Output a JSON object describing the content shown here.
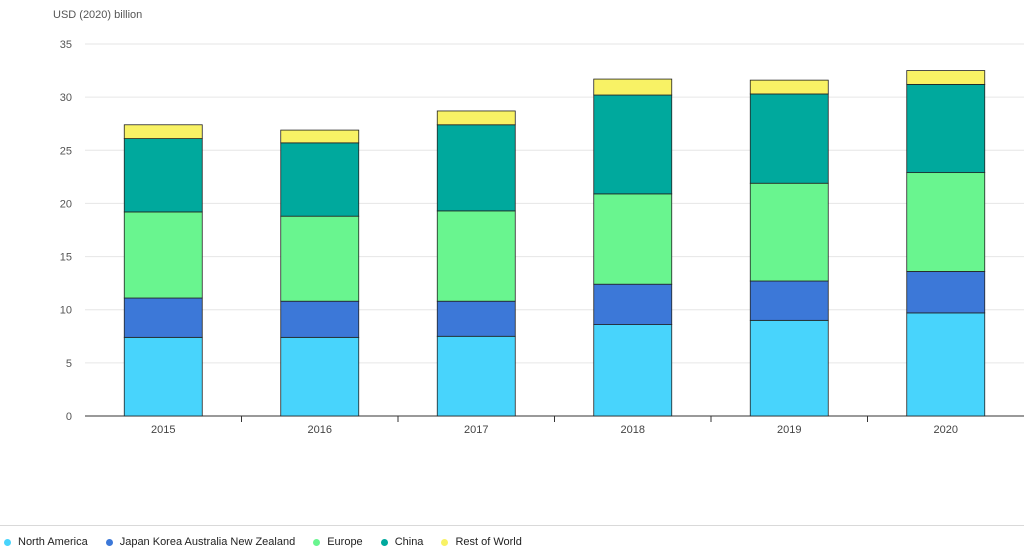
{
  "chart_data": {
    "type": "bar",
    "stacked": true,
    "ylabel": "USD (2020) billion",
    "ylim": [
      0,
      35
    ],
    "yticks": [
      0,
      5,
      10,
      15,
      20,
      25,
      30,
      35
    ],
    "grid": true,
    "legend_position": "bottom",
    "categories": [
      "2015",
      "2016",
      "2017",
      "2018",
      "2019",
      "2020"
    ],
    "series": [
      {
        "name": "North America",
        "color": "#48d4fc",
        "values": [
          7.4,
          7.4,
          7.5,
          8.6,
          9.0,
          9.7
        ]
      },
      {
        "name": "Japan Korea Australia New Zealand",
        "color": "#3c78d8",
        "values": [
          3.7,
          3.4,
          3.3,
          3.8,
          3.7,
          3.9
        ]
      },
      {
        "name": "Europe",
        "color": "#69f58f",
        "values": [
          8.1,
          8.0,
          8.5,
          8.5,
          9.2,
          9.3
        ]
      },
      {
        "name": "China",
        "color": "#00a99d",
        "values": [
          6.9,
          6.9,
          8.1,
          9.3,
          8.4,
          8.3
        ]
      },
      {
        "name": "Rest of World",
        "color": "#f8f265",
        "values": [
          1.3,
          1.2,
          1.3,
          1.5,
          1.3,
          1.3
        ]
      }
    ]
  }
}
